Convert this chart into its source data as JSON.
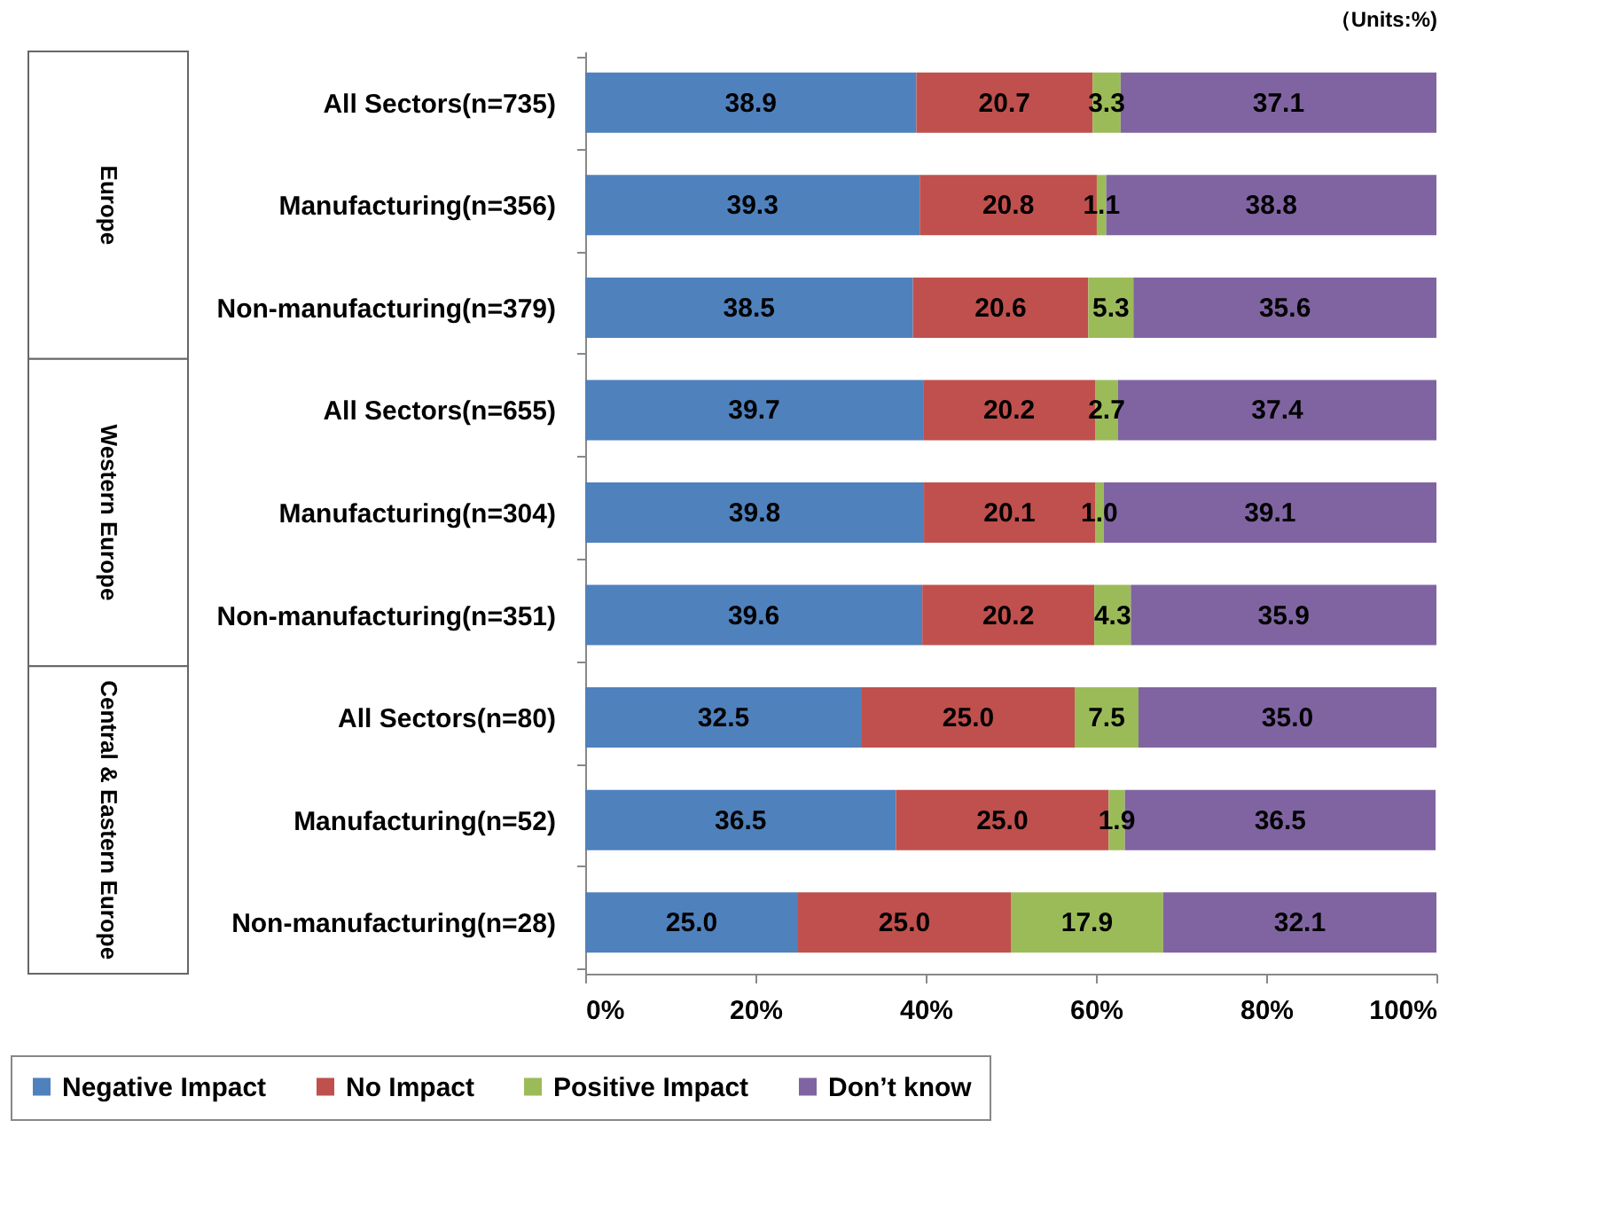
{
  "chart_data": {
    "type": "bar",
    "orientation": "horizontal",
    "stacked": true,
    "legend": "bottom",
    "grid": false,
    "categories": [
      "All Sectors(n=735)",
      "Manufacturing(n=356)",
      "Non-manufacturing(n=379)",
      "All Sectors(n=655)",
      "Manufacturing(n=304)",
      "Non-manufacturing(n=351)",
      "All Sectors(n=80)",
      "Manufacturing(n=52)",
      "Non-manufacturing(n=28)"
    ],
    "series": [
      {
        "name": "Negative Impact",
        "color": "#4f81bd",
        "values": [
          38.9,
          39.3,
          38.5,
          39.7,
          39.8,
          39.6,
          32.5,
          36.5,
          25.0
        ],
        "value_labels": [
          "38.9",
          "39.3",
          "38.5",
          "39.7",
          "39.8",
          "39.6",
          "32.5",
          "36.5",
          "25.0"
        ]
      },
      {
        "name": "No Impact",
        "color": "#c0504d",
        "values": [
          20.7,
          20.8,
          20.6,
          20.2,
          20.1,
          20.2,
          25.0,
          25.0,
          25.0
        ],
        "value_labels": [
          "20.7",
          "20.8",
          "20.6",
          "20.2",
          "20.1",
          "20.2",
          "25.0",
          "25.0",
          "25.0"
        ]
      },
      {
        "name": "Positive Impact",
        "color": "#9bbb59",
        "values": [
          3.3,
          1.1,
          5.3,
          2.7,
          1.0,
          4.3,
          7.5,
          1.9,
          17.9
        ],
        "value_labels": [
          "3.3",
          "1.1",
          "5.3",
          "2.7",
          "1.0",
          "4.3",
          "7.5",
          "1.9",
          "17.9"
        ]
      },
      {
        "name": "Don’t know",
        "color": "#8064a2",
        "values": [
          37.1,
          38.8,
          35.6,
          37.4,
          39.1,
          35.9,
          35.0,
          36.5,
          32.1
        ],
        "value_labels": [
          "37.1",
          "38.8",
          "35.6",
          "37.4",
          "39.1",
          "35.9",
          "35.0",
          "36.5",
          "32.1"
        ]
      }
    ],
    "xlim": [
      0,
      100
    ],
    "xticks": [
      {
        "value": 0,
        "label": "0%"
      },
      {
        "value": 20,
        "label": "20%"
      },
      {
        "value": 40,
        "label": "40%"
      },
      {
        "value": 60,
        "label": "60%"
      },
      {
        "value": 80,
        "label": "80%"
      },
      {
        "value": 100,
        "label": "100%"
      }
    ],
    "annotations": [
      "（Units:%)",
      "Europe",
      "Western Europe",
      "Central & Eastern Europe"
    ]
  }
}
